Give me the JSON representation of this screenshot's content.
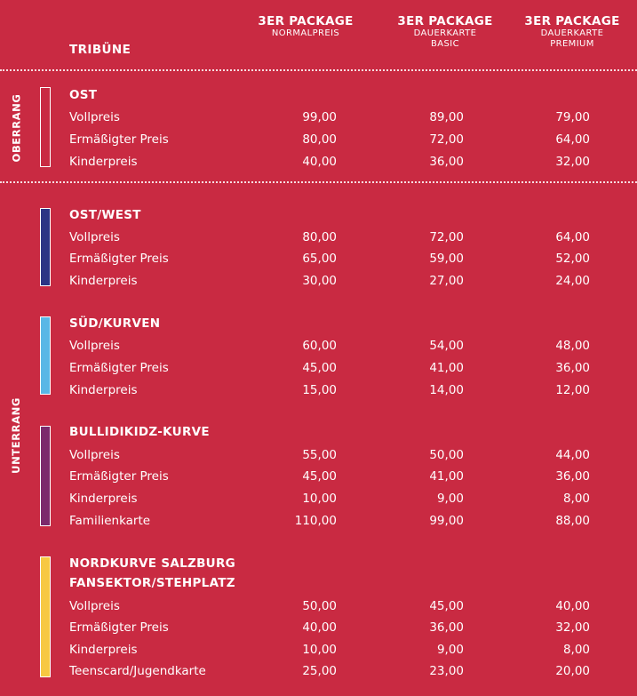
{
  "header": {
    "tribune": "TRIBÜNE",
    "columns": [
      {
        "line1": "3ER PACKAGE",
        "line2": "NORMALPREIS",
        "line3": ""
      },
      {
        "line1": "3ER PACKAGE",
        "line2": "DAUERKARTE",
        "line3": "BASIC"
      },
      {
        "line1": "3ER PACKAGE",
        "line2": "DAUERKARTE",
        "line3": "PREMIUM"
      }
    ]
  },
  "rang": {
    "oberrang": "OBERRANG",
    "unterrang": "UNTERRANG"
  },
  "colors": {
    "background": "#c92a42",
    "ost": "#c92a42",
    "ost_west": "#2b3585",
    "sued_kurven": "#59b7e6",
    "bullidikidz": "#7c2a6c",
    "nordkurve": "#f7c842"
  },
  "sections": [
    {
      "title": "OST",
      "title2": "",
      "rows": [
        {
          "label": "Vollpreis",
          "v1": "99,00",
          "v2": "89,00",
          "v3": "79,00"
        },
        {
          "label": "Ermäßigter Preis",
          "v1": "80,00",
          "v2": "72,00",
          "v3": "64,00"
        },
        {
          "label": "Kinderpreis",
          "v1": "40,00",
          "v2": "36,00",
          "v3": "32,00"
        }
      ]
    },
    {
      "title": "OST/WEST",
      "title2": "",
      "rows": [
        {
          "label": "Vollpreis",
          "v1": "80,00",
          "v2": "72,00",
          "v3": "64,00"
        },
        {
          "label": "Ermäßigter Preis",
          "v1": "65,00",
          "v2": "59,00",
          "v3": "52,00"
        },
        {
          "label": "Kinderpreis",
          "v1": "30,00",
          "v2": "27,00",
          "v3": "24,00"
        }
      ]
    },
    {
      "title": "SÜD/KURVEN",
      "title2": "",
      "rows": [
        {
          "label": "Vollpreis",
          "v1": "60,00",
          "v2": "54,00",
          "v3": "48,00"
        },
        {
          "label": "Ermäßigter Preis",
          "v1": "45,00",
          "v2": "41,00",
          "v3": "36,00"
        },
        {
          "label": "Kinderpreis",
          "v1": "15,00",
          "v2": "14,00",
          "v3": "12,00"
        }
      ]
    },
    {
      "title": "BULLIDIKIDZ-KURVE",
      "title2": "",
      "rows": [
        {
          "label": "Vollpreis",
          "v1": "55,00",
          "v2": "50,00",
          "v3": "44,00"
        },
        {
          "label": "Ermäßigter Preis",
          "v1": "45,00",
          "v2": "41,00",
          "v3": "36,00"
        },
        {
          "label": "Kinderpreis",
          "v1": "10,00",
          "v2": "9,00",
          "v3": "8,00"
        },
        {
          "label": "Familienkarte",
          "v1": "110,00",
          "v2": "99,00",
          "v3": "88,00"
        }
      ]
    },
    {
      "title": "NORDKURVE SALZBURG",
      "title2": "FANSEKTOR/STEHPLATZ",
      "rows": [
        {
          "label": "Vollpreis",
          "v1": "50,00",
          "v2": "45,00",
          "v3": "40,00"
        },
        {
          "label": "Ermäßigter Preis",
          "v1": "40,00",
          "v2": "36,00",
          "v3": "32,00"
        },
        {
          "label": "Kinderpreis",
          "v1": "10,00",
          "v2": "9,00",
          "v3": "8,00"
        },
        {
          "label": "Teenscard/Jugendkarte",
          "v1": "25,00",
          "v2": "23,00",
          "v3": "20,00"
        }
      ]
    }
  ]
}
